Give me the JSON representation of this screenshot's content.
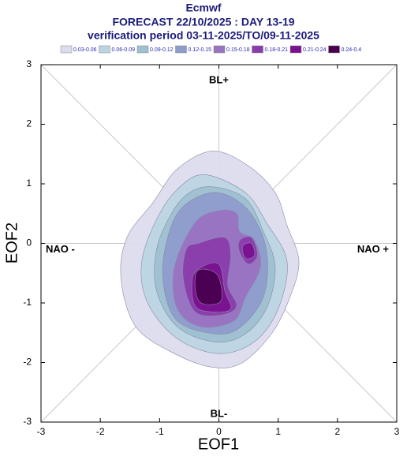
{
  "chart_data": {
    "type": "contour",
    "title": "Ecmwf",
    "subtitle": "FORECAST 22/10/2025 : DAY 13-19",
    "subtitle2": "verification period 03-11-2025/TO/09-11-2025",
    "x_label": "EOF1",
    "y_label": "EOF2",
    "xlim": [
      -3,
      3
    ],
    "ylim": [
      -3,
      3
    ],
    "xticks": [
      -3,
      -2,
      -1,
      0,
      1,
      2,
      3
    ],
    "yticks": [
      -3,
      -2,
      -1,
      0,
      1,
      2,
      3
    ],
    "annotations": {
      "top": "BL+",
      "bottom": "BL-",
      "left": "NAO -",
      "right": "NAO +"
    },
    "levels": [
      {
        "name": "0.03-0.06",
        "color": "#dcdcee",
        "polygons": [
          {
            "x": [
              -0.7,
              -0.1,
              0.5,
              0.95,
              1.15,
              1.35,
              1.2,
              0.9,
              0.4,
              -0.1,
              -0.75,
              -1.4,
              -1.65,
              -1.55,
              -1.1
            ],
            "y": [
              1.25,
              1.55,
              1.3,
              0.85,
              0.3,
              -0.3,
              -0.9,
              -1.5,
              -2.0,
              -2.08,
              -1.85,
              -1.4,
              -0.6,
              0.1,
              0.7
            ]
          }
        ]
      },
      {
        "name": "0.06-0.09",
        "color": "#bcd4e2",
        "polygons": [
          {
            "x": [
              -0.6,
              -0.2,
              0.45,
              0.8,
              1.15,
              1.0,
              0.6,
              0.0,
              -0.7,
              -1.2,
              -1.3,
              -1.0
            ],
            "y": [
              1.0,
              1.15,
              0.85,
              0.35,
              -0.3,
              -1.1,
              -1.65,
              -1.85,
              -1.6,
              -1.0,
              -0.3,
              0.5
            ]
          }
        ]
      },
      {
        "name": "0.09-0.12",
        "color": "#9ec0d0",
        "polygons": [
          {
            "x": [
              -0.5,
              -0.1,
              0.45,
              0.75,
              0.95,
              0.8,
              0.4,
              -0.1,
              -0.7,
              -1.05,
              -1.05,
              -0.8
            ],
            "y": [
              0.85,
              0.95,
              0.75,
              0.2,
              -0.4,
              -1.1,
              -1.55,
              -1.65,
              -1.4,
              -0.8,
              -0.1,
              0.5
            ]
          }
        ]
      },
      {
        "name": "0.12-0.15",
        "color": "#8e9ccc",
        "polygons": [
          {
            "x": [
              -0.5,
              0.0,
              0.5,
              0.8,
              0.75,
              0.3,
              -0.2,
              -0.75,
              -0.95,
              -0.8
            ],
            "y": [
              0.7,
              0.85,
              0.55,
              -0.1,
              -0.9,
              -1.45,
              -1.5,
              -1.25,
              -0.5,
              0.3
            ]
          }
        ]
      },
      {
        "name": "0.15-0.18",
        "color": "#9a72c2",
        "polygons": [
          {
            "x": [
              -0.4,
              0.0,
              0.3,
              0.35,
              0.6,
              0.7,
              0.45,
              0.25,
              -0.3,
              -0.7,
              -0.75
            ],
            "y": [
              0.35,
              0.55,
              0.5,
              0.2,
              0.05,
              -0.4,
              -0.9,
              -1.3,
              -1.4,
              -1.1,
              -0.4
            ]
          }
        ]
      },
      {
        "name": "0.18-0.21",
        "color": "#8a3cac",
        "polygons": [
          {
            "x": [
              -0.35,
              0.1,
              0.2,
              0.15,
              0.3,
              0.05,
              -0.4,
              -0.6,
              -0.55
            ],
            "y": [
              0.0,
              0.1,
              -0.2,
              -0.7,
              -1.05,
              -1.2,
              -1.15,
              -0.6,
              -0.1
            ]
          },
          {
            "x": [
              0.35,
              0.55,
              0.65,
              0.5,
              0.35
            ],
            "y": [
              0.05,
              0.1,
              -0.2,
              -0.35,
              -0.15
            ]
          }
        ]
      },
      {
        "name": "0.21-0.24",
        "color": "#7a1090",
        "polygons": [
          {
            "x": [
              -0.3,
              0.0,
              0.1,
              0.2,
              -0.1,
              -0.4,
              -0.45
            ],
            "y": [
              -0.4,
              -0.35,
              -0.8,
              -1.1,
              -1.15,
              -1.05,
              -0.6
            ]
          },
          {
            "x": [
              0.4,
              0.55,
              0.6,
              0.45
            ],
            "y": [
              -0.05,
              0.0,
              -0.2,
              -0.25
            ]
          }
        ]
      },
      {
        "name": "0.24-0.4",
        "color": "#4a0050",
        "polygons": [
          {
            "x": [
              -0.35,
              -0.05,
              0.05,
              0.0,
              -0.3,
              -0.4
            ],
            "y": [
              -0.45,
              -0.5,
              -0.8,
              -1.0,
              -1.0,
              -0.75
            ]
          }
        ]
      }
    ]
  }
}
